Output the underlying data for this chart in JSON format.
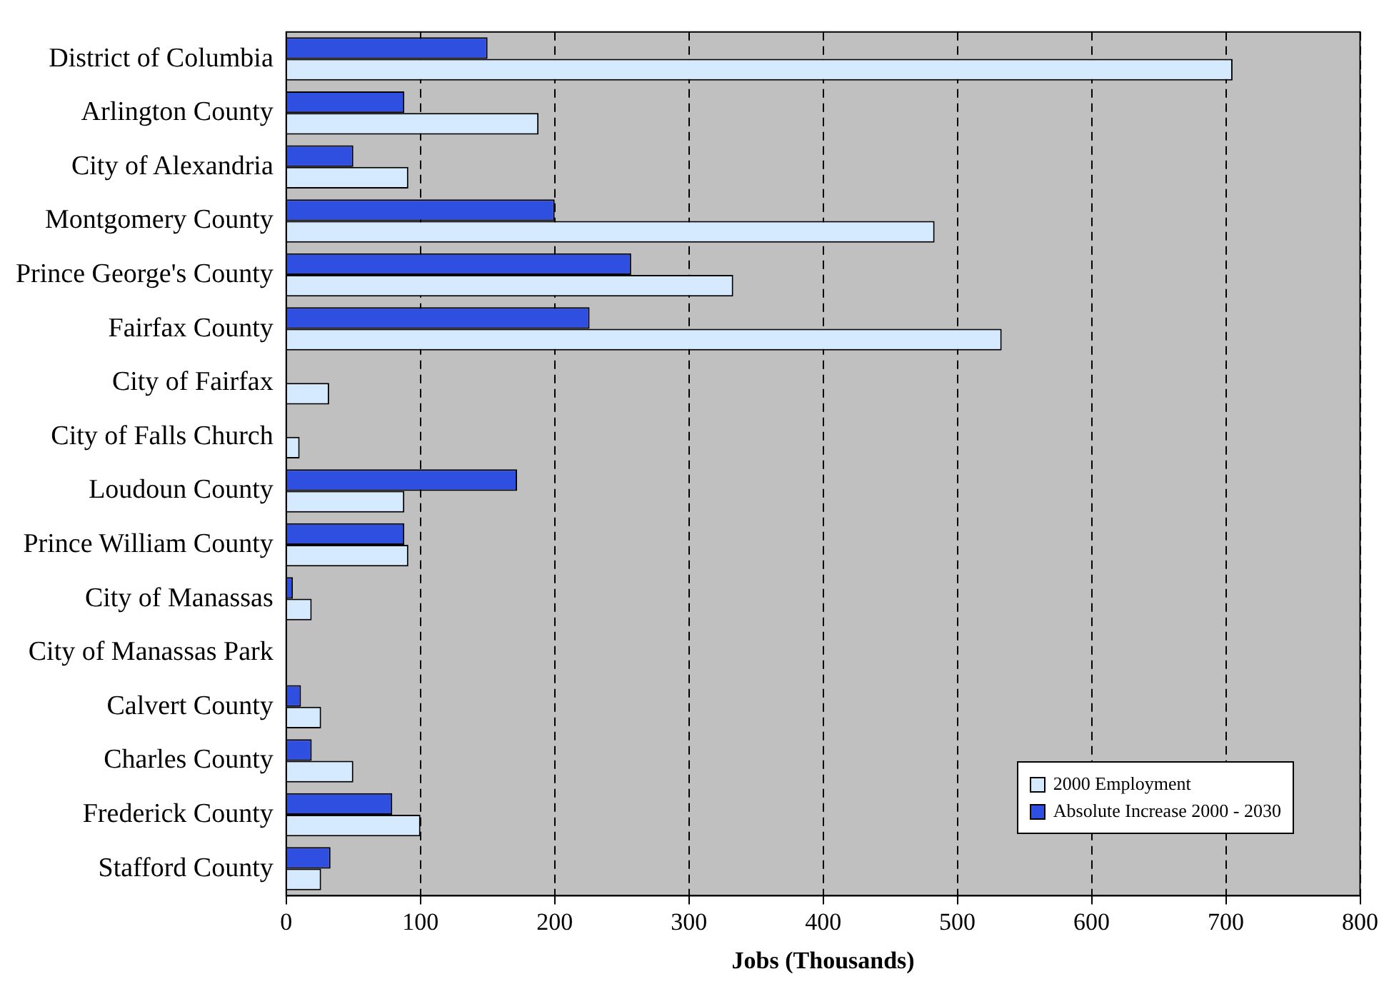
{
  "chart_data": {
    "type": "bar",
    "orientation": "horizontal",
    "xlabel": "Jobs (Thousands)",
    "categories": [
      "District of Columbia",
      "Arlington County",
      "City of Alexandria",
      "Montgomery County",
      "Prince George's County",
      "Fairfax County",
      "City of Fairfax",
      "City of Falls Church",
      "Loudoun County",
      "Prince William County",
      "City of Manassas",
      "City of Manassas Park",
      "Calvert County",
      "Charles County",
      "Frederick County",
      "Stafford County"
    ],
    "series": [
      {
        "name": "2000 Employment",
        "color": "#d6eaff",
        "values": [
          705,
          188,
          91,
          483,
          333,
          533,
          32,
          10,
          88,
          91,
          19,
          null,
          26,
          50,
          100,
          26
        ]
      },
      {
        "name": "Absolute Increase 2000 - 2030",
        "color": "#2f4fe0",
        "values": [
          150,
          88,
          50,
          200,
          257,
          226,
          null,
          null,
          172,
          88,
          5,
          null,
          11,
          19,
          79,
          33
        ]
      }
    ],
    "xlim": [
      0,
      800
    ],
    "xticks": [
      0,
      100,
      200,
      300,
      400,
      500,
      600,
      700,
      800
    ],
    "grid": "x",
    "legend": "bottom right"
  }
}
